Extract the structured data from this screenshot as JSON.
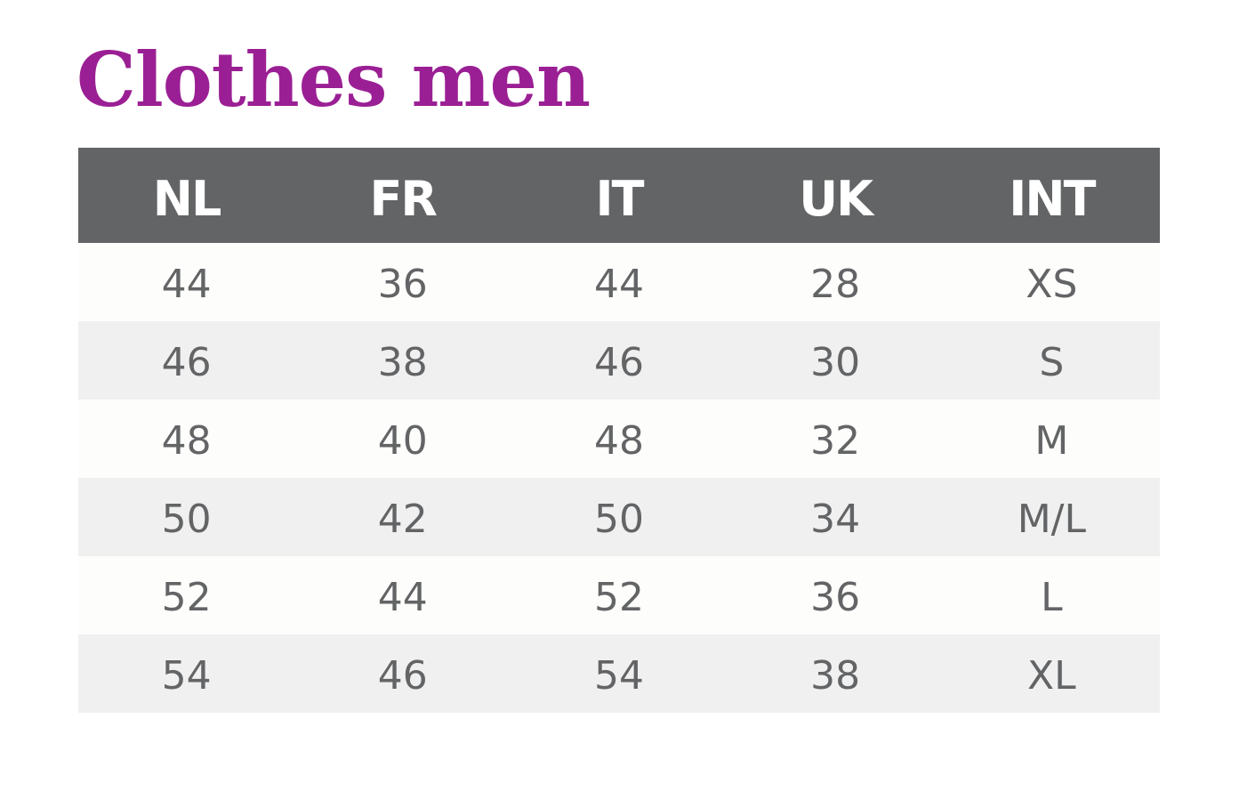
{
  "header": {
    "title": "Clothes men"
  },
  "table": {
    "columns": [
      "NL",
      "FR",
      "IT",
      "UK",
      "INT"
    ],
    "rows": [
      [
        44,
        36,
        44,
        28,
        "XS"
      ],
      [
        46,
        38,
        46,
        30,
        "S"
      ],
      [
        48,
        40,
        48,
        32,
        "M"
      ],
      [
        50,
        42,
        50,
        34,
        "M/L"
      ],
      [
        52,
        44,
        52,
        36,
        "L"
      ],
      [
        54,
        46,
        54,
        38,
        "XL"
      ]
    ]
  }
}
